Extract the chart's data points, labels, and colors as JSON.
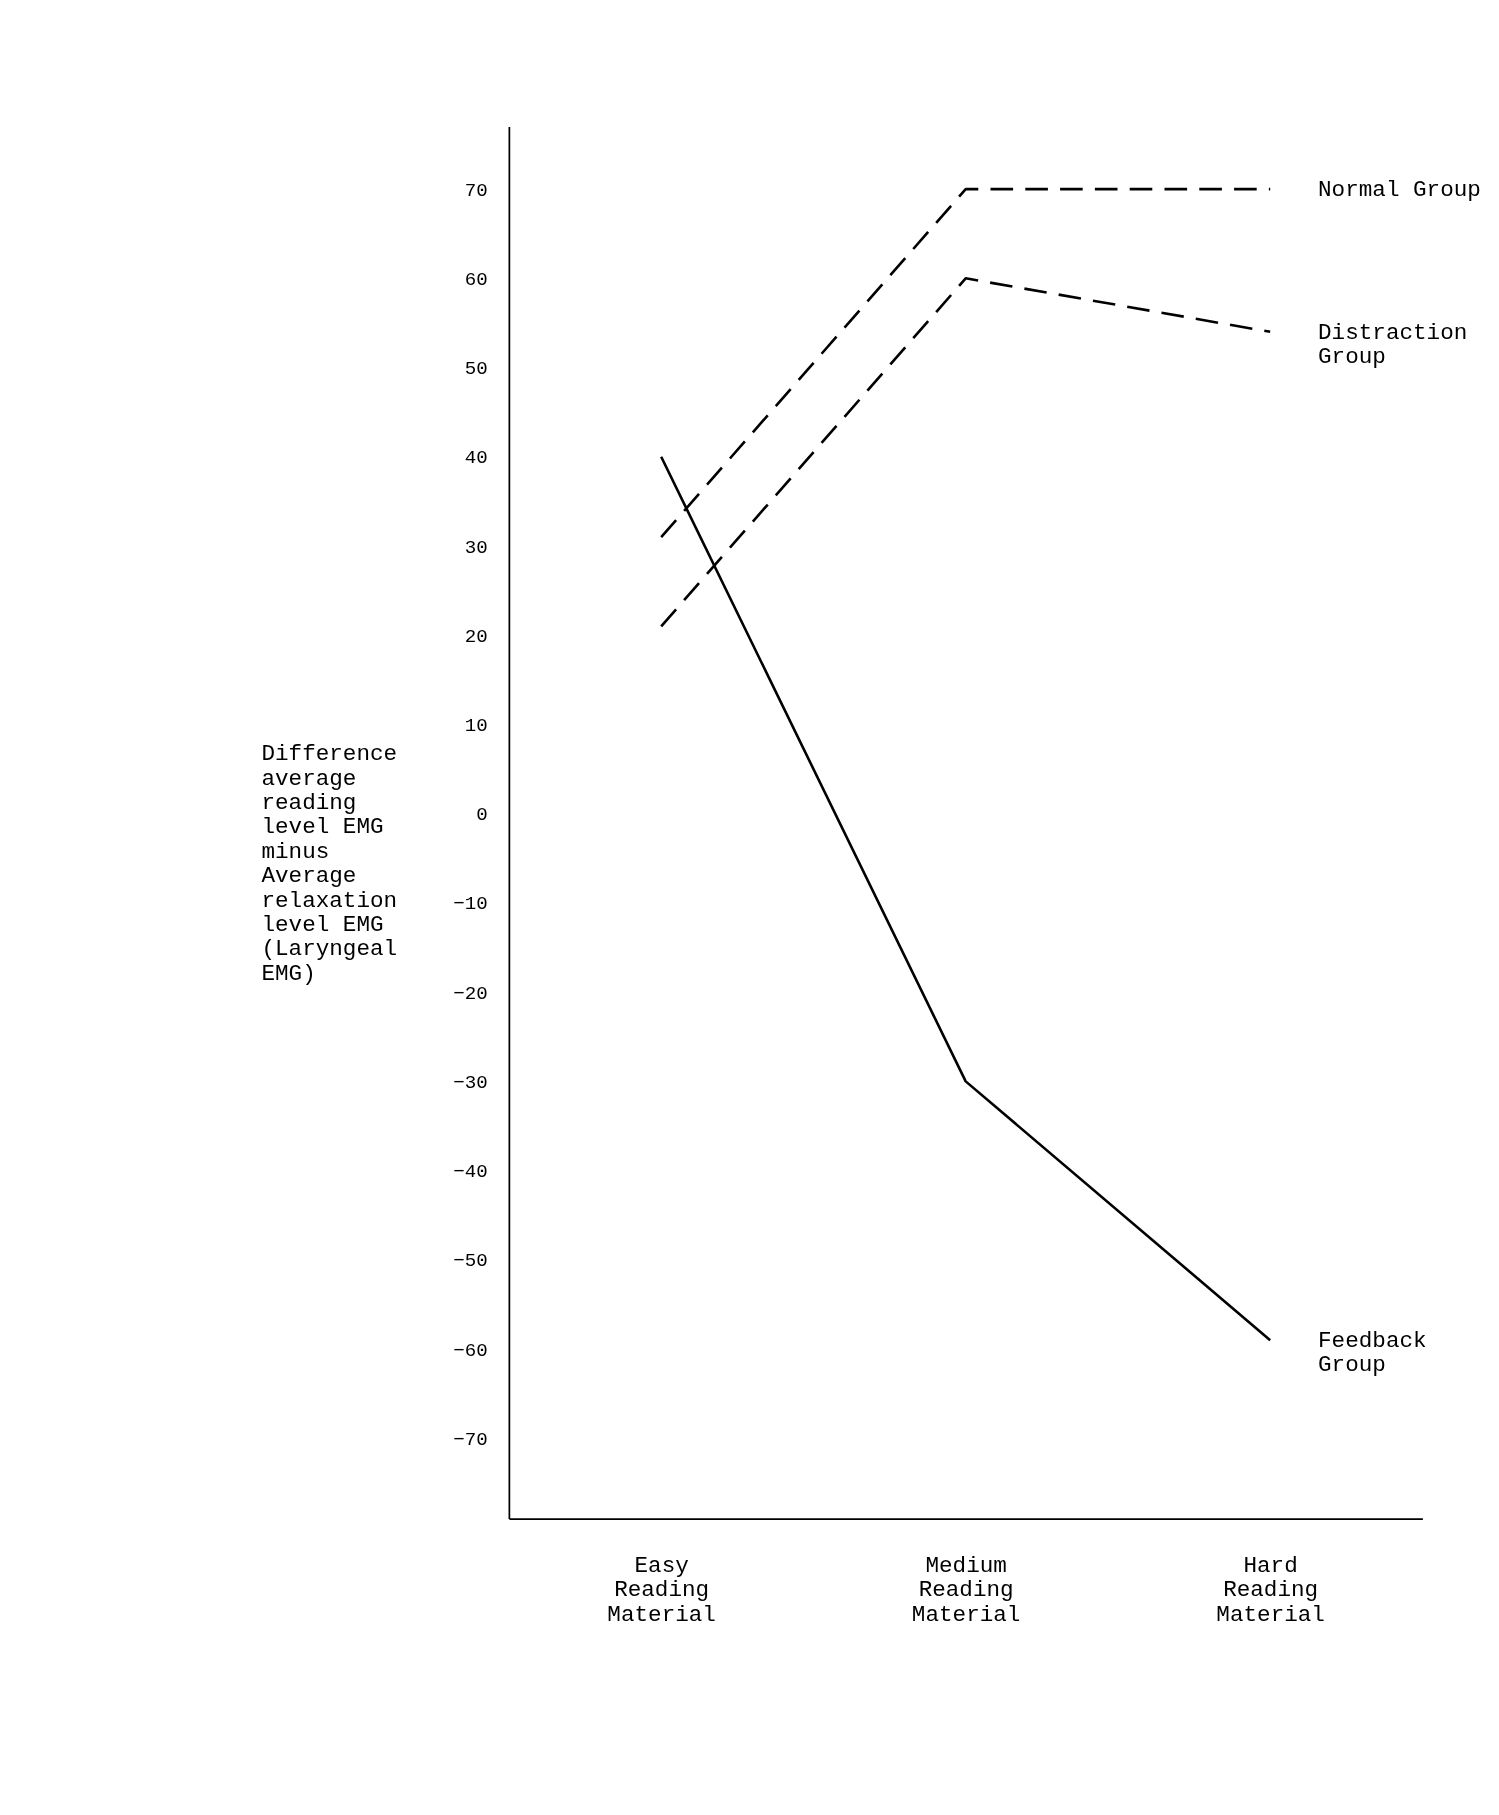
{
  "chart_data": {
    "type": "line",
    "categories": [
      "Easy Reading Material",
      "Medium Reading Material",
      "Hard Reading Material"
    ],
    "ylabel": "Difference\naverage\nreading\nlevel EMG\nminus\nAverage\nrelaxation\nlevel EMG\n\n(Laryngeal\nEMG)",
    "series": [
      {
        "name": "Normal Group",
        "color": "#000000",
        "line_style": "dashed",
        "values": [
          31,
          70,
          70
        ]
      },
      {
        "name": "Distraction\nGroup",
        "color": "#000000",
        "line_style": "dashed",
        "values": [
          21,
          60,
          54
        ]
      },
      {
        "name": "Feedback\nGroup",
        "color": "#000000",
        "line_style": "solid",
        "values": [
          40,
          -30,
          -59
        ]
      }
    ],
    "ylim": [
      -79,
      77
    ],
    "yticks": [
      -70,
      -60,
      -50,
      -40,
      -30,
      -20,
      -10,
      0,
      10,
      20,
      30,
      40,
      50,
      60,
      70
    ],
    "grid": false,
    "marker": "none"
  }
}
